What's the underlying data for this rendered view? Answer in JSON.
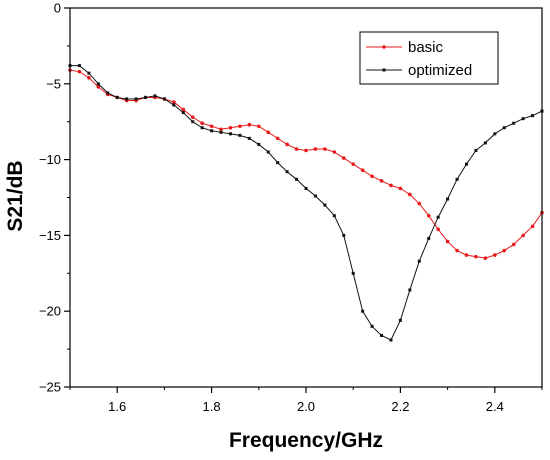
{
  "chart_data": {
    "type": "line",
    "xlabel": "Frequency/GHz",
    "ylabel": "S21/dB",
    "xlim": [
      1.5,
      2.5
    ],
    "ylim": [
      -25,
      0
    ],
    "x_ticks": [
      1.6,
      1.8,
      2.0,
      2.2,
      2.4
    ],
    "x_tick_labels": [
      "1.6",
      "1.8",
      "2.0",
      "2.2",
      "2.4"
    ],
    "y_ticks": [
      0,
      -5,
      -10,
      -15,
      -20,
      -25
    ],
    "y_tick_labels": [
      "0",
      "−5",
      "−10",
      "−15",
      "−20",
      "−25"
    ],
    "grid": false,
    "legend_position": "top-right",
    "series": [
      {
        "name": "basic",
        "color": "#e8191b",
        "x": [
          1.5,
          1.52,
          1.54,
          1.56,
          1.58,
          1.6,
          1.62,
          1.64,
          1.66,
          1.68,
          1.7,
          1.72,
          1.74,
          1.76,
          1.78,
          1.8,
          1.82,
          1.84,
          1.86,
          1.88,
          1.9,
          1.92,
          1.94,
          1.96,
          1.98,
          2.0,
          2.02,
          2.04,
          2.06,
          2.08,
          2.1,
          2.12,
          2.14,
          2.16,
          2.18,
          2.2,
          2.22,
          2.24,
          2.26,
          2.28,
          2.3,
          2.32,
          2.34,
          2.36,
          2.38,
          2.4,
          2.42,
          2.44,
          2.46,
          2.48,
          2.5
        ],
        "y": [
          -4.1,
          -4.2,
          -4.6,
          -5.2,
          -5.7,
          -5.9,
          -6.1,
          -6.1,
          -5.9,
          -5.9,
          -6.0,
          -6.2,
          -6.7,
          -7.2,
          -7.6,
          -7.8,
          -8.0,
          -7.9,
          -7.8,
          -7.7,
          -7.8,
          -8.2,
          -8.6,
          -9.0,
          -9.3,
          -9.4,
          -9.3,
          -9.3,
          -9.5,
          -9.9,
          -10.3,
          -10.7,
          -11.1,
          -11.4,
          -11.7,
          -11.9,
          -12.3,
          -12.9,
          -13.7,
          -14.6,
          -15.4,
          -16.0,
          -16.3,
          -16.4,
          -16.5,
          -16.3,
          -16.0,
          -15.6,
          -15.0,
          -14.4,
          -13.5
        ]
      },
      {
        "name": "optimized",
        "color": "#111111",
        "x": [
          1.5,
          1.52,
          1.54,
          1.56,
          1.58,
          1.6,
          1.62,
          1.64,
          1.66,
          1.68,
          1.7,
          1.72,
          1.74,
          1.76,
          1.78,
          1.8,
          1.82,
          1.84,
          1.86,
          1.88,
          1.9,
          1.92,
          1.94,
          1.96,
          1.98,
          2.0,
          2.02,
          2.04,
          2.06,
          2.08,
          2.1,
          2.12,
          2.14,
          2.16,
          2.18,
          2.2,
          2.22,
          2.24,
          2.26,
          2.28,
          2.3,
          2.32,
          2.34,
          2.36,
          2.38,
          2.4,
          2.42,
          2.44,
          2.46,
          2.48,
          2.5
        ],
        "y": [
          -3.8,
          -3.8,
          -4.3,
          -5.0,
          -5.6,
          -5.9,
          -6.0,
          -6.0,
          -5.9,
          -5.8,
          -6.0,
          -6.4,
          -6.9,
          -7.5,
          -7.9,
          -8.1,
          -8.2,
          -8.3,
          -8.4,
          -8.6,
          -9.0,
          -9.5,
          -10.2,
          -10.8,
          -11.3,
          -11.9,
          -12.4,
          -13.0,
          -13.7,
          -15.0,
          -17.5,
          -20.0,
          -21.0,
          -21.6,
          -21.9,
          -20.6,
          -18.6,
          -16.7,
          -15.2,
          -13.8,
          -12.6,
          -11.3,
          -10.3,
          -9.4,
          -8.9,
          -8.3,
          -7.9,
          -7.6,
          -7.3,
          -7.1,
          -6.8
        ]
      }
    ]
  }
}
